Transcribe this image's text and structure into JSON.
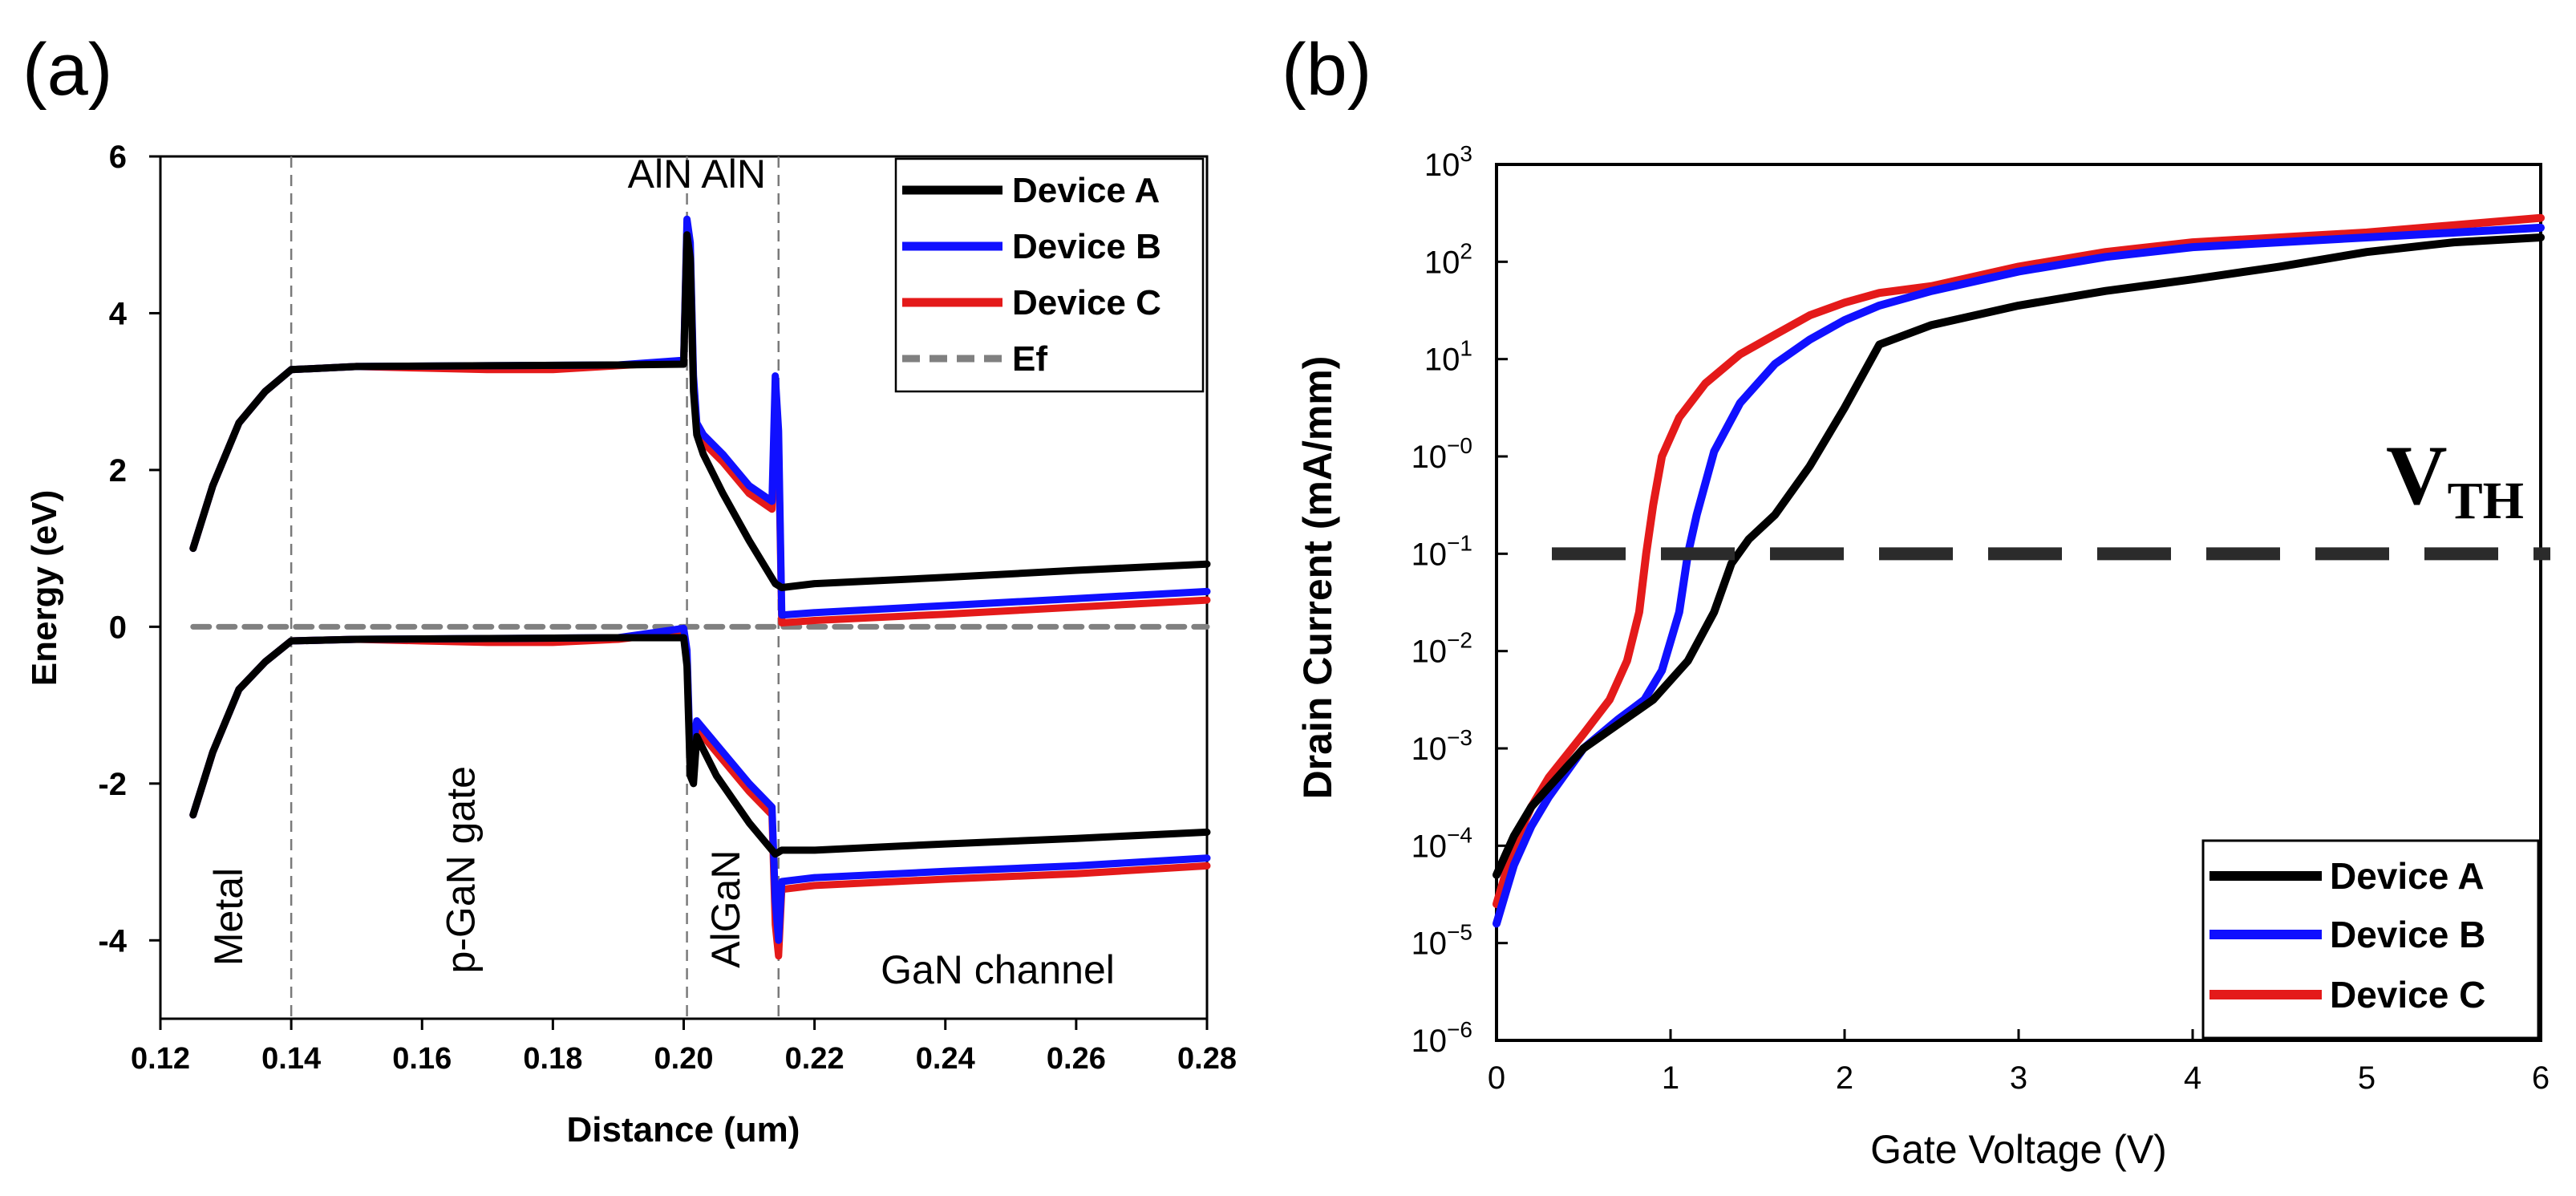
{
  "colors": {
    "device_a": "#000000",
    "device_b": "#1010ff",
    "device_c": "#e41a1a",
    "ef": "#808080",
    "vth_line": "#2b2b2b",
    "region_line": "#7a7a7a"
  },
  "panel_labels": {
    "a": "(a)",
    "b": "(b)"
  },
  "chart_data": [
    {
      "type": "line",
      "panel": "(a)",
      "title": "",
      "xlabel": "Distance (um)",
      "ylabel": "Energy (eV)",
      "xlim": [
        0.12,
        0.28
      ],
      "ylim": [
        -5,
        6
      ],
      "xticks": [
        0.12,
        0.14,
        0.16,
        0.18,
        0.2,
        0.22,
        0.24,
        0.26,
        0.28
      ],
      "xtick_labels": [
        "0.12",
        "0.14",
        "0.16",
        "0.18",
        "0.20",
        "0.22",
        "0.24",
        "0.26",
        "0.28"
      ],
      "yticks": [
        -4,
        -2,
        0,
        2,
        4,
        6
      ],
      "ytick_labels": [
        "-4",
        "-2",
        "0",
        "2",
        "4",
        "6"
      ],
      "region_boundaries": [
        0.14,
        0.2005,
        0.2145
      ],
      "annotations": [
        {
          "text": "AlN AlN",
          "x": 0.202,
          "y": 5.6,
          "rotated": false
        },
        {
          "text": "Metal",
          "x": 0.1325,
          "y": -3.7,
          "rotated": true
        },
        {
          "text": "p-GaN gate",
          "x": 0.168,
          "y": -3.1,
          "rotated": true
        },
        {
          "text": "AlGaN",
          "x": 0.2085,
          "y": -3.6,
          "rotated": true
        },
        {
          "text": "GaN channel",
          "x": 0.248,
          "y": -4.55,
          "rotated": false
        }
      ],
      "legend": [
        "Device A",
        "Device B",
        "Device C",
        "Ef"
      ],
      "legend_position": "top-right",
      "series": [
        {
          "name": "Device A",
          "band": "conduction",
          "x": [
            0.125,
            0.128,
            0.132,
            0.136,
            0.14,
            0.15,
            0.17,
            0.19,
            0.2,
            0.2005,
            0.201,
            0.2015,
            0.202,
            0.203,
            0.206,
            0.21,
            0.214,
            0.215,
            0.22,
            0.24,
            0.26,
            0.28
          ],
          "y": [
            1.0,
            1.8,
            2.6,
            3.0,
            3.28,
            3.32,
            3.33,
            3.34,
            3.35,
            5.0,
            4.7,
            3.0,
            2.45,
            2.2,
            1.7,
            1.1,
            0.55,
            0.5,
            0.55,
            0.63,
            0.72,
            0.8
          ]
        },
        {
          "name": "Device B",
          "band": "conduction",
          "x": [
            0.125,
            0.128,
            0.132,
            0.136,
            0.14,
            0.15,
            0.17,
            0.19,
            0.2,
            0.2005,
            0.201,
            0.2015,
            0.202,
            0.203,
            0.206,
            0.21,
            0.2135,
            0.214,
            0.2145,
            0.215,
            0.22,
            0.24,
            0.26,
            0.28
          ],
          "y": [
            1.0,
            1.8,
            2.6,
            3.0,
            3.28,
            3.32,
            3.33,
            3.34,
            3.4,
            5.2,
            4.9,
            3.2,
            2.6,
            2.45,
            2.2,
            1.8,
            1.6,
            3.2,
            2.5,
            0.15,
            0.18,
            0.27,
            0.36,
            0.45
          ]
        },
        {
          "name": "Device C",
          "band": "conduction",
          "x": [
            0.125,
            0.128,
            0.132,
            0.136,
            0.14,
            0.15,
            0.16,
            0.17,
            0.18,
            0.19,
            0.2,
            0.2005,
            0.201,
            0.2015,
            0.202,
            0.203,
            0.206,
            0.21,
            0.2135,
            0.214,
            0.2145,
            0.215,
            0.22,
            0.24,
            0.26,
            0.28
          ],
          "y": [
            1.0,
            1.8,
            2.6,
            3.0,
            3.28,
            3.32,
            3.3,
            3.28,
            3.28,
            3.33,
            3.38,
            5.1,
            4.8,
            3.1,
            2.5,
            2.35,
            2.1,
            1.7,
            1.5,
            2.9,
            2.3,
            0.05,
            0.08,
            0.16,
            0.25,
            0.34
          ]
        },
        {
          "name": "Device A",
          "band": "valence",
          "x": [
            0.125,
            0.128,
            0.132,
            0.136,
            0.14,
            0.15,
            0.17,
            0.19,
            0.2,
            0.2005,
            0.201,
            0.2015,
            0.202,
            0.205,
            0.21,
            0.214,
            0.215,
            0.22,
            0.24,
            0.26,
            0.28
          ],
          "y": [
            -2.4,
            -1.6,
            -0.8,
            -0.45,
            -0.18,
            -0.16,
            -0.15,
            -0.14,
            -0.14,
            -0.5,
            -1.9,
            -2.0,
            -1.4,
            -1.9,
            -2.5,
            -2.9,
            -2.85,
            -2.85,
            -2.77,
            -2.7,
            -2.62
          ]
        },
        {
          "name": "Device B",
          "band": "valence",
          "x": [
            0.125,
            0.128,
            0.132,
            0.136,
            0.14,
            0.15,
            0.17,
            0.19,
            0.2,
            0.2005,
            0.201,
            0.2015,
            0.202,
            0.205,
            0.21,
            0.2135,
            0.214,
            0.2145,
            0.215,
            0.22,
            0.24,
            0.26,
            0.28
          ],
          "y": [
            -2.4,
            -1.6,
            -0.8,
            -0.45,
            -0.18,
            -0.16,
            -0.15,
            -0.14,
            -0.02,
            -0.3,
            -1.7,
            -1.5,
            -1.2,
            -1.5,
            -2.0,
            -2.3,
            -3.5,
            -4.0,
            -3.25,
            -3.2,
            -3.12,
            -3.05,
            -2.95
          ]
        },
        {
          "name": "Device C",
          "band": "valence",
          "x": [
            0.125,
            0.128,
            0.132,
            0.136,
            0.14,
            0.15,
            0.16,
            0.17,
            0.18,
            0.19,
            0.2,
            0.2005,
            0.201,
            0.2015,
            0.202,
            0.205,
            0.21,
            0.2135,
            0.214,
            0.2145,
            0.215,
            0.22,
            0.24,
            0.26,
            0.28
          ],
          "y": [
            -2.4,
            -1.6,
            -0.8,
            -0.45,
            -0.18,
            -0.16,
            -0.18,
            -0.2,
            -0.2,
            -0.16,
            -0.06,
            -0.4,
            -1.8,
            -1.6,
            -1.3,
            -1.6,
            -2.1,
            -2.4,
            -3.8,
            -4.2,
            -3.35,
            -3.3,
            -3.22,
            -3.15,
            -3.05
          ]
        },
        {
          "name": "Ef",
          "band": "fermi",
          "x": [
            0.125,
            0.28
          ],
          "y": [
            0,
            0
          ]
        }
      ]
    },
    {
      "type": "line",
      "panel": "(b)",
      "title": "",
      "xlabel": "Gate Voltage (V)",
      "ylabel": "Drain Current (mA/mm)",
      "yscale": "log",
      "xlim": [
        0,
        6
      ],
      "ylim_log10": [
        -6,
        3
      ],
      "xticks": [
        0,
        1,
        2,
        3,
        4,
        5,
        6
      ],
      "xtick_labels": [
        "0",
        "1",
        "2",
        "3",
        "4",
        "5",
        "6"
      ],
      "yticks_log10": [
        -6,
        -5,
        -4,
        -3,
        -2,
        -1,
        0,
        1,
        2,
        3
      ],
      "ytick_bases": [
        "10",
        "10",
        "10",
        "10",
        "10",
        "10",
        "10",
        "10",
        "10",
        "10"
      ],
      "ytick_exponents": [
        "−6",
        "−5",
        "−4",
        "−3",
        "−2",
        "−1",
        "−0",
        "1",
        "2",
        "3"
      ],
      "threshold_log10": -1,
      "threshold_label_main": "V",
      "threshold_label_sub": "TH",
      "legend": [
        "Device A",
        "Device B",
        "Device C"
      ],
      "legend_position": "bottom-right",
      "series": [
        {
          "name": "Device A",
          "x": [
            0,
            0.1,
            0.2,
            0.3,
            0.5,
            0.7,
            0.9,
            1.1,
            1.25,
            1.35,
            1.45,
            1.6,
            1.8,
            2.0,
            2.2,
            2.5,
            3.0,
            3.5,
            4.0,
            4.5,
            5.0,
            5.5,
            6.0
          ],
          "log10_y": [
            -4.3,
            -3.9,
            -3.6,
            -3.4,
            -3.0,
            -2.75,
            -2.5,
            -2.1,
            -1.6,
            -1.1,
            -0.85,
            -0.6,
            -0.1,
            0.5,
            1.15,
            1.35,
            1.55,
            1.7,
            1.82,
            1.95,
            2.1,
            2.2,
            2.25
          ]
        },
        {
          "name": "Device B",
          "x": [
            0,
            0.05,
            0.1,
            0.2,
            0.3,
            0.5,
            0.7,
            0.85,
            0.95,
            1.05,
            1.1,
            1.15,
            1.25,
            1.4,
            1.6,
            1.8,
            2.0,
            2.2,
            2.5,
            3.0,
            3.5,
            4.0,
            5.0,
            6.0
          ],
          "log10_y": [
            -4.8,
            -4.5,
            -4.2,
            -3.8,
            -3.5,
            -3.0,
            -2.7,
            -2.5,
            -2.2,
            -1.6,
            -1.0,
            -0.6,
            0.05,
            0.55,
            0.95,
            1.2,
            1.4,
            1.55,
            1.7,
            1.9,
            2.05,
            2.15,
            2.25,
            2.35
          ]
        },
        {
          "name": "Device C",
          "x": [
            0,
            0.05,
            0.1,
            0.2,
            0.3,
            0.5,
            0.65,
            0.75,
            0.82,
            0.86,
            0.9,
            0.95,
            1.05,
            1.2,
            1.4,
            1.6,
            1.8,
            2.0,
            2.2,
            2.5,
            3.0,
            3.5,
            4.0,
            5.0,
            6.0
          ],
          "log10_y": [
            -4.6,
            -4.3,
            -4.0,
            -3.6,
            -3.3,
            -2.85,
            -2.5,
            -2.1,
            -1.6,
            -1.0,
            -0.5,
            0.0,
            0.4,
            0.75,
            1.05,
            1.25,
            1.45,
            1.58,
            1.68,
            1.75,
            1.95,
            2.1,
            2.2,
            2.3,
            2.45
          ]
        }
      ]
    }
  ]
}
